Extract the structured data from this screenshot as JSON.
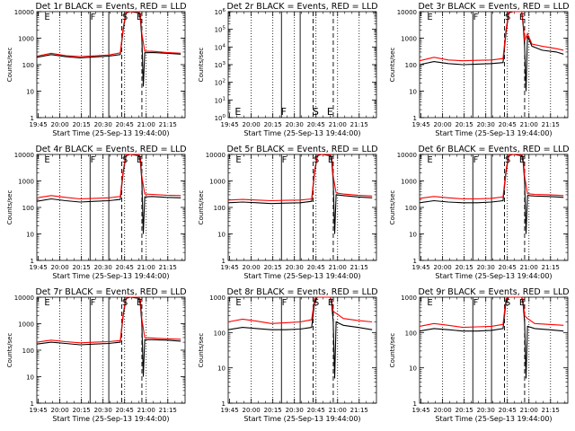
{
  "chart_data": {
    "type": "line",
    "time_label": "Start Time (25-Sep-13 19:44:00)",
    "ylabel": "Counts/sec",
    "x_tick_labels": [
      "19:45",
      "20:00",
      "20:15",
      "20:30",
      "20:45",
      "21:00",
      "21:15"
    ],
    "x_tick_minutes": [
      1,
      16,
      31,
      46,
      61,
      76,
      91
    ],
    "xlim_minutes": [
      0,
      103
    ],
    "colors": {
      "events": "#000000",
      "lld": "#ff0000"
    },
    "markers": [
      {
        "label": "E",
        "minute": 4
      },
      {
        "label": "F",
        "minute": 36
      },
      {
        "label": "S",
        "minute": 58
      },
      {
        "label": "E",
        "minute": 68
      }
    ],
    "panels": [
      {
        "title": "Det 1r BLACK = Events, RED = LLD",
        "ylim": [
          1,
          10000
        ],
        "y_tick_labels": [
          "1",
          "10",
          "100",
          "1000",
          "10000"
        ],
        "solid_minutes": [
          37,
          50
        ],
        "dashed_minutes": [
          59,
          73
        ],
        "dotted_minutes": [
          16,
          31,
          46,
          61,
          76,
          91
        ],
        "black": {
          "x": [
            0,
            10,
            20,
            30,
            40,
            50,
            58,
            60,
            62,
            65,
            71,
            72,
            73,
            74,
            75,
            80,
            90,
            100
          ],
          "y": [
            190,
            240,
            200,
            180,
            195,
            210,
            240,
            2000,
            9000,
            10000,
            9000,
            5000,
            1000,
            15,
            280,
            290,
            270,
            250
          ]
        },
        "red": {
          "x": [
            0,
            10,
            20,
            30,
            40,
            50,
            58,
            60,
            62,
            65,
            71,
            72,
            73,
            75,
            80,
            90,
            100
          ],
          "y": [
            210,
            270,
            220,
            200,
            215,
            230,
            280,
            2500,
            10000,
            10000,
            10000,
            8000,
            1500,
            320,
            320,
            290,
            270
          ]
        },
        "marker_labels": [
          "E",
          "F",
          "S",
          "E"
        ]
      },
      {
        "title": "Det 2r BLACK = Events, RED = LLD",
        "ylim": [
          1,
          1000000
        ],
        "y_tick_labels": [
          "10^0",
          "10^1",
          "10^2",
          "10^3",
          "10^4",
          "10^5",
          "10^6"
        ],
        "solid_minutes": [
          37,
          50
        ],
        "dashed_minutes": [
          59,
          73
        ],
        "dotted_minutes": [
          16,
          31,
          46,
          61,
          76,
          91
        ],
        "black": {
          "x": [],
          "y": []
        },
        "red": {
          "x": [],
          "y": []
        },
        "marker_labels": [
          "E",
          "F",
          "S",
          "E"
        ]
      },
      {
        "title": "Det 3r BLACK = Events, RED = LLD",
        "ylim": [
          1,
          10000
        ],
        "y_tick_labels": [
          "1",
          "10",
          "100",
          "1000",
          "10000"
        ],
        "solid_minutes": [
          37,
          50
        ],
        "dashed_minutes": [
          59,
          73
        ],
        "dotted_minutes": [
          16,
          31,
          46,
          61,
          76,
          91
        ],
        "black": {
          "x": [
            0,
            10,
            20,
            30,
            40,
            50,
            58,
            60,
            62,
            65,
            71,
            72,
            73,
            74,
            75,
            78,
            85,
            95,
            100
          ],
          "y": [
            100,
            130,
            110,
            100,
            105,
            110,
            120,
            1500,
            9000,
            10000,
            10000,
            3000,
            500,
            10,
            1200,
            500,
            350,
            300,
            250
          ]
        },
        "red": {
          "x": [
            0,
            10,
            20,
            30,
            40,
            50,
            58,
            60,
            62,
            65,
            71,
            72,
            73,
            75,
            78,
            85,
            95,
            100
          ],
          "y": [
            140,
            190,
            150,
            140,
            145,
            150,
            170,
            2000,
            10000,
            10000,
            10000,
            4000,
            800,
            1500,
            600,
            500,
            400,
            350
          ]
        },
        "marker_labels": [
          "E",
          "F",
          "S",
          "E"
        ]
      },
      {
        "title": "Det 4r BLACK = Events, RED = LLD",
        "ylim": [
          1,
          10000
        ],
        "y_tick_labels": [
          "1",
          "10",
          "100",
          "1000",
          "10000"
        ],
        "solid_minutes": [
          37,
          50
        ],
        "dashed_minutes": [
          59,
          73
        ],
        "dotted_minutes": [
          16,
          31,
          46,
          61,
          76,
          91
        ],
        "black": {
          "x": [
            0,
            10,
            20,
            30,
            40,
            50,
            58,
            60,
            62,
            65,
            71,
            72,
            73,
            74,
            75,
            80,
            90,
            100
          ],
          "y": [
            170,
            210,
            180,
            160,
            170,
            180,
            200,
            2000,
            9000,
            10000,
            9000,
            5000,
            1000,
            10,
            250,
            260,
            240,
            230
          ]
        },
        "red": {
          "x": [
            0,
            10,
            20,
            30,
            40,
            50,
            58,
            60,
            62,
            65,
            71,
            72,
            73,
            75,
            80,
            90,
            100
          ],
          "y": [
            230,
            280,
            240,
            210,
            220,
            230,
            260,
            2500,
            10000,
            10000,
            10000,
            8000,
            1500,
            320,
            310,
            290,
            280
          ]
        },
        "marker_labels": [
          "E",
          "F",
          "S",
          "E"
        ]
      },
      {
        "title": "Det 5r BLACK = Events, RED = LLD",
        "ylim": [
          1,
          10000
        ],
        "y_tick_labels": [
          "1",
          "10",
          "100",
          "1000",
          "10000"
        ],
        "solid_minutes": [
          37,
          50
        ],
        "dashed_minutes": [
          59,
          73
        ],
        "dotted_minutes": [
          16,
          31,
          46,
          61,
          76,
          91
        ],
        "black": {
          "x": [
            0,
            10,
            20,
            30,
            40,
            50,
            58,
            60,
            62,
            65,
            71,
            72,
            73,
            74,
            75,
            80,
            90,
            100
          ],
          "y": [
            150,
            160,
            150,
            140,
            145,
            150,
            170,
            2000,
            9000,
            10000,
            9000,
            5000,
            1000,
            10,
            300,
            280,
            250,
            230
          ]
        },
        "red": {
          "x": [
            0,
            10,
            20,
            30,
            40,
            50,
            58,
            60,
            62,
            65,
            71,
            72,
            73,
            75,
            80,
            90,
            100
          ],
          "y": [
            190,
            200,
            190,
            180,
            185,
            190,
            210,
            2500,
            10000,
            10000,
            10000,
            8000,
            1500,
            350,
            320,
            290,
            270
          ]
        },
        "marker_labels": [
          "E",
          "F",
          "S",
          "E"
        ]
      },
      {
        "title": "Det 6r BLACK = Events, RED = LLD",
        "ylim": [
          1,
          10000
        ],
        "y_tick_labels": [
          "1",
          "10",
          "100",
          "1000",
          "10000"
        ],
        "solid_minutes": [
          37,
          50
        ],
        "dashed_minutes": [
          59,
          73
        ],
        "dotted_minutes": [
          16,
          31,
          46,
          61,
          76,
          91
        ],
        "black": {
          "x": [
            0,
            10,
            20,
            30,
            40,
            50,
            58,
            60,
            62,
            65,
            71,
            72,
            73,
            74,
            75,
            80,
            90,
            100
          ],
          "y": [
            150,
            180,
            160,
            150,
            150,
            160,
            180,
            2000,
            9000,
            10000,
            9000,
            5000,
            1000,
            10,
            280,
            270,
            260,
            240
          ]
        },
        "red": {
          "x": [
            0,
            10,
            20,
            30,
            40,
            50,
            58,
            60,
            62,
            65,
            71,
            72,
            73,
            75,
            80,
            90,
            100
          ],
          "y": [
            220,
            260,
            230,
            210,
            210,
            220,
            250,
            2500,
            10000,
            10000,
            10000,
            8000,
            1500,
            330,
            310,
            300,
            280
          ]
        },
        "marker_labels": [
          "E",
          "F",
          "S",
          "E"
        ]
      },
      {
        "title": "Det 7r BLACK = Events, RED = LLD",
        "ylim": [
          1,
          10000
        ],
        "y_tick_labels": [
          "1",
          "10",
          "100",
          "1000",
          "10000"
        ],
        "solid_minutes": [
          37,
          50
        ],
        "dashed_minutes": [
          59,
          73
        ],
        "dotted_minutes": [
          16,
          31,
          46,
          61,
          76,
          91
        ],
        "black": {
          "x": [
            0,
            10,
            20,
            30,
            40,
            50,
            58,
            60,
            62,
            65,
            71,
            72,
            73,
            74,
            75,
            80,
            90,
            100
          ],
          "y": [
            170,
            200,
            180,
            160,
            170,
            180,
            200,
            2000,
            9000,
            10000,
            9000,
            5000,
            1000,
            10,
            250,
            250,
            240,
            220
          ]
        },
        "red": {
          "x": [
            0,
            10,
            20,
            30,
            40,
            50,
            58,
            60,
            62,
            65,
            71,
            72,
            73,
            75,
            80,
            90,
            100
          ],
          "y": [
            200,
            240,
            210,
            190,
            200,
            210,
            230,
            2500,
            10000,
            10000,
            10000,
            8000,
            1500,
            300,
            290,
            270,
            260
          ]
        },
        "marker_labels": [
          "E",
          "F",
          "S",
          "E"
        ]
      },
      {
        "title": "Det 8r BLACK = Events, RED = LLD",
        "ylim": [
          1,
          1000
        ],
        "y_tick_labels": [
          "1",
          "10",
          "100",
          "1000"
        ],
        "solid_minutes": [
          37,
          50
        ],
        "dashed_minutes": [
          59,
          73
        ],
        "dotted_minutes": [
          16,
          31,
          46,
          61,
          76,
          91
        ],
        "black": {
          "x": [
            0,
            10,
            20,
            30,
            40,
            50,
            58,
            60,
            62,
            65,
            71,
            72,
            73,
            74,
            75,
            80,
            90,
            100
          ],
          "y": [
            120,
            140,
            130,
            120,
            120,
            125,
            140,
            700,
            1000,
            1000,
            1000,
            600,
            200,
            5,
            200,
            160,
            140,
            120
          ]
        },
        "red": {
          "x": [
            0,
            10,
            20,
            30,
            40,
            50,
            58,
            60,
            62,
            65,
            71,
            72,
            73,
            75,
            80,
            90,
            100
          ],
          "y": [
            200,
            240,
            210,
            180,
            190,
            200,
            230,
            900,
            1000,
            1000,
            1000,
            800,
            400,
            350,
            250,
            220,
            200
          ]
        },
        "marker_labels": [
          "E",
          "F",
          "S",
          "E"
        ]
      },
      {
        "title": "Det 9r BLACK = Events, RED = LLD",
        "ylim": [
          1,
          1000
        ],
        "y_tick_labels": [
          "1",
          "10",
          "100",
          "1000"
        ],
        "solid_minutes": [
          37,
          50
        ],
        "dashed_minutes": [
          59,
          73
        ],
        "dotted_minutes": [
          16,
          31,
          46,
          61,
          76,
          91
        ],
        "black": {
          "x": [
            0,
            10,
            20,
            30,
            40,
            50,
            58,
            60,
            62,
            65,
            71,
            72,
            73,
            74,
            75,
            80,
            90,
            100
          ],
          "y": [
            110,
            130,
            120,
            110,
            110,
            115,
            130,
            700,
            1000,
            1000,
            1000,
            600,
            200,
            5,
            150,
            130,
            120,
            110
          ]
        },
        "red": {
          "x": [
            0,
            10,
            20,
            30,
            40,
            50,
            58,
            60,
            62,
            65,
            71,
            72,
            73,
            75,
            80,
            90,
            100
          ],
          "y": [
            150,
            180,
            160,
            140,
            145,
            150,
            170,
            900,
            1000,
            1000,
            1000,
            800,
            300,
            250,
            180,
            170,
            160
          ]
        },
        "marker_labels": [
          "E",
          "F",
          "S",
          "E"
        ]
      }
    ]
  }
}
